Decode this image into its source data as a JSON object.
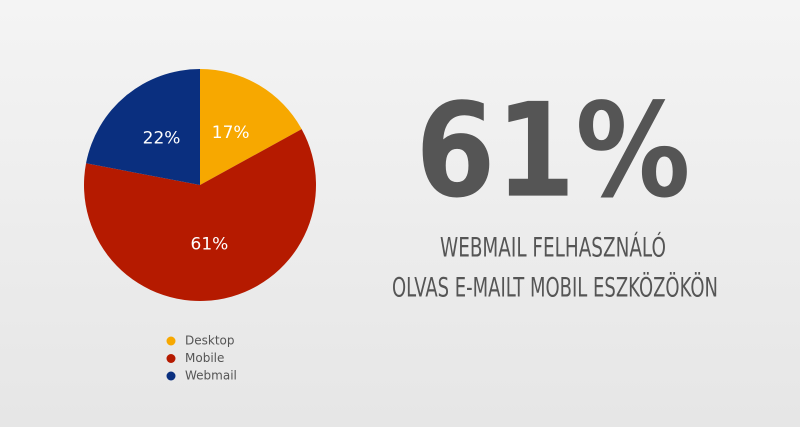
{
  "chart_data": {
    "type": "pie",
    "categories": [
      "Desktop",
      "Mobile",
      "Webmail"
    ],
    "values": [
      17,
      61,
      22
    ],
    "value_labels": [
      "17%",
      "61%",
      "22%"
    ],
    "colors": [
      "#f7a800",
      "#b51a00",
      "#0a2f7f"
    ],
    "headline": "61%",
    "caption": [
      "WEBMAIL FELHASZNÁLÓ",
      "OLVAS E-MAILT MOBIL ESZKÖZÖKÖN"
    ]
  }
}
